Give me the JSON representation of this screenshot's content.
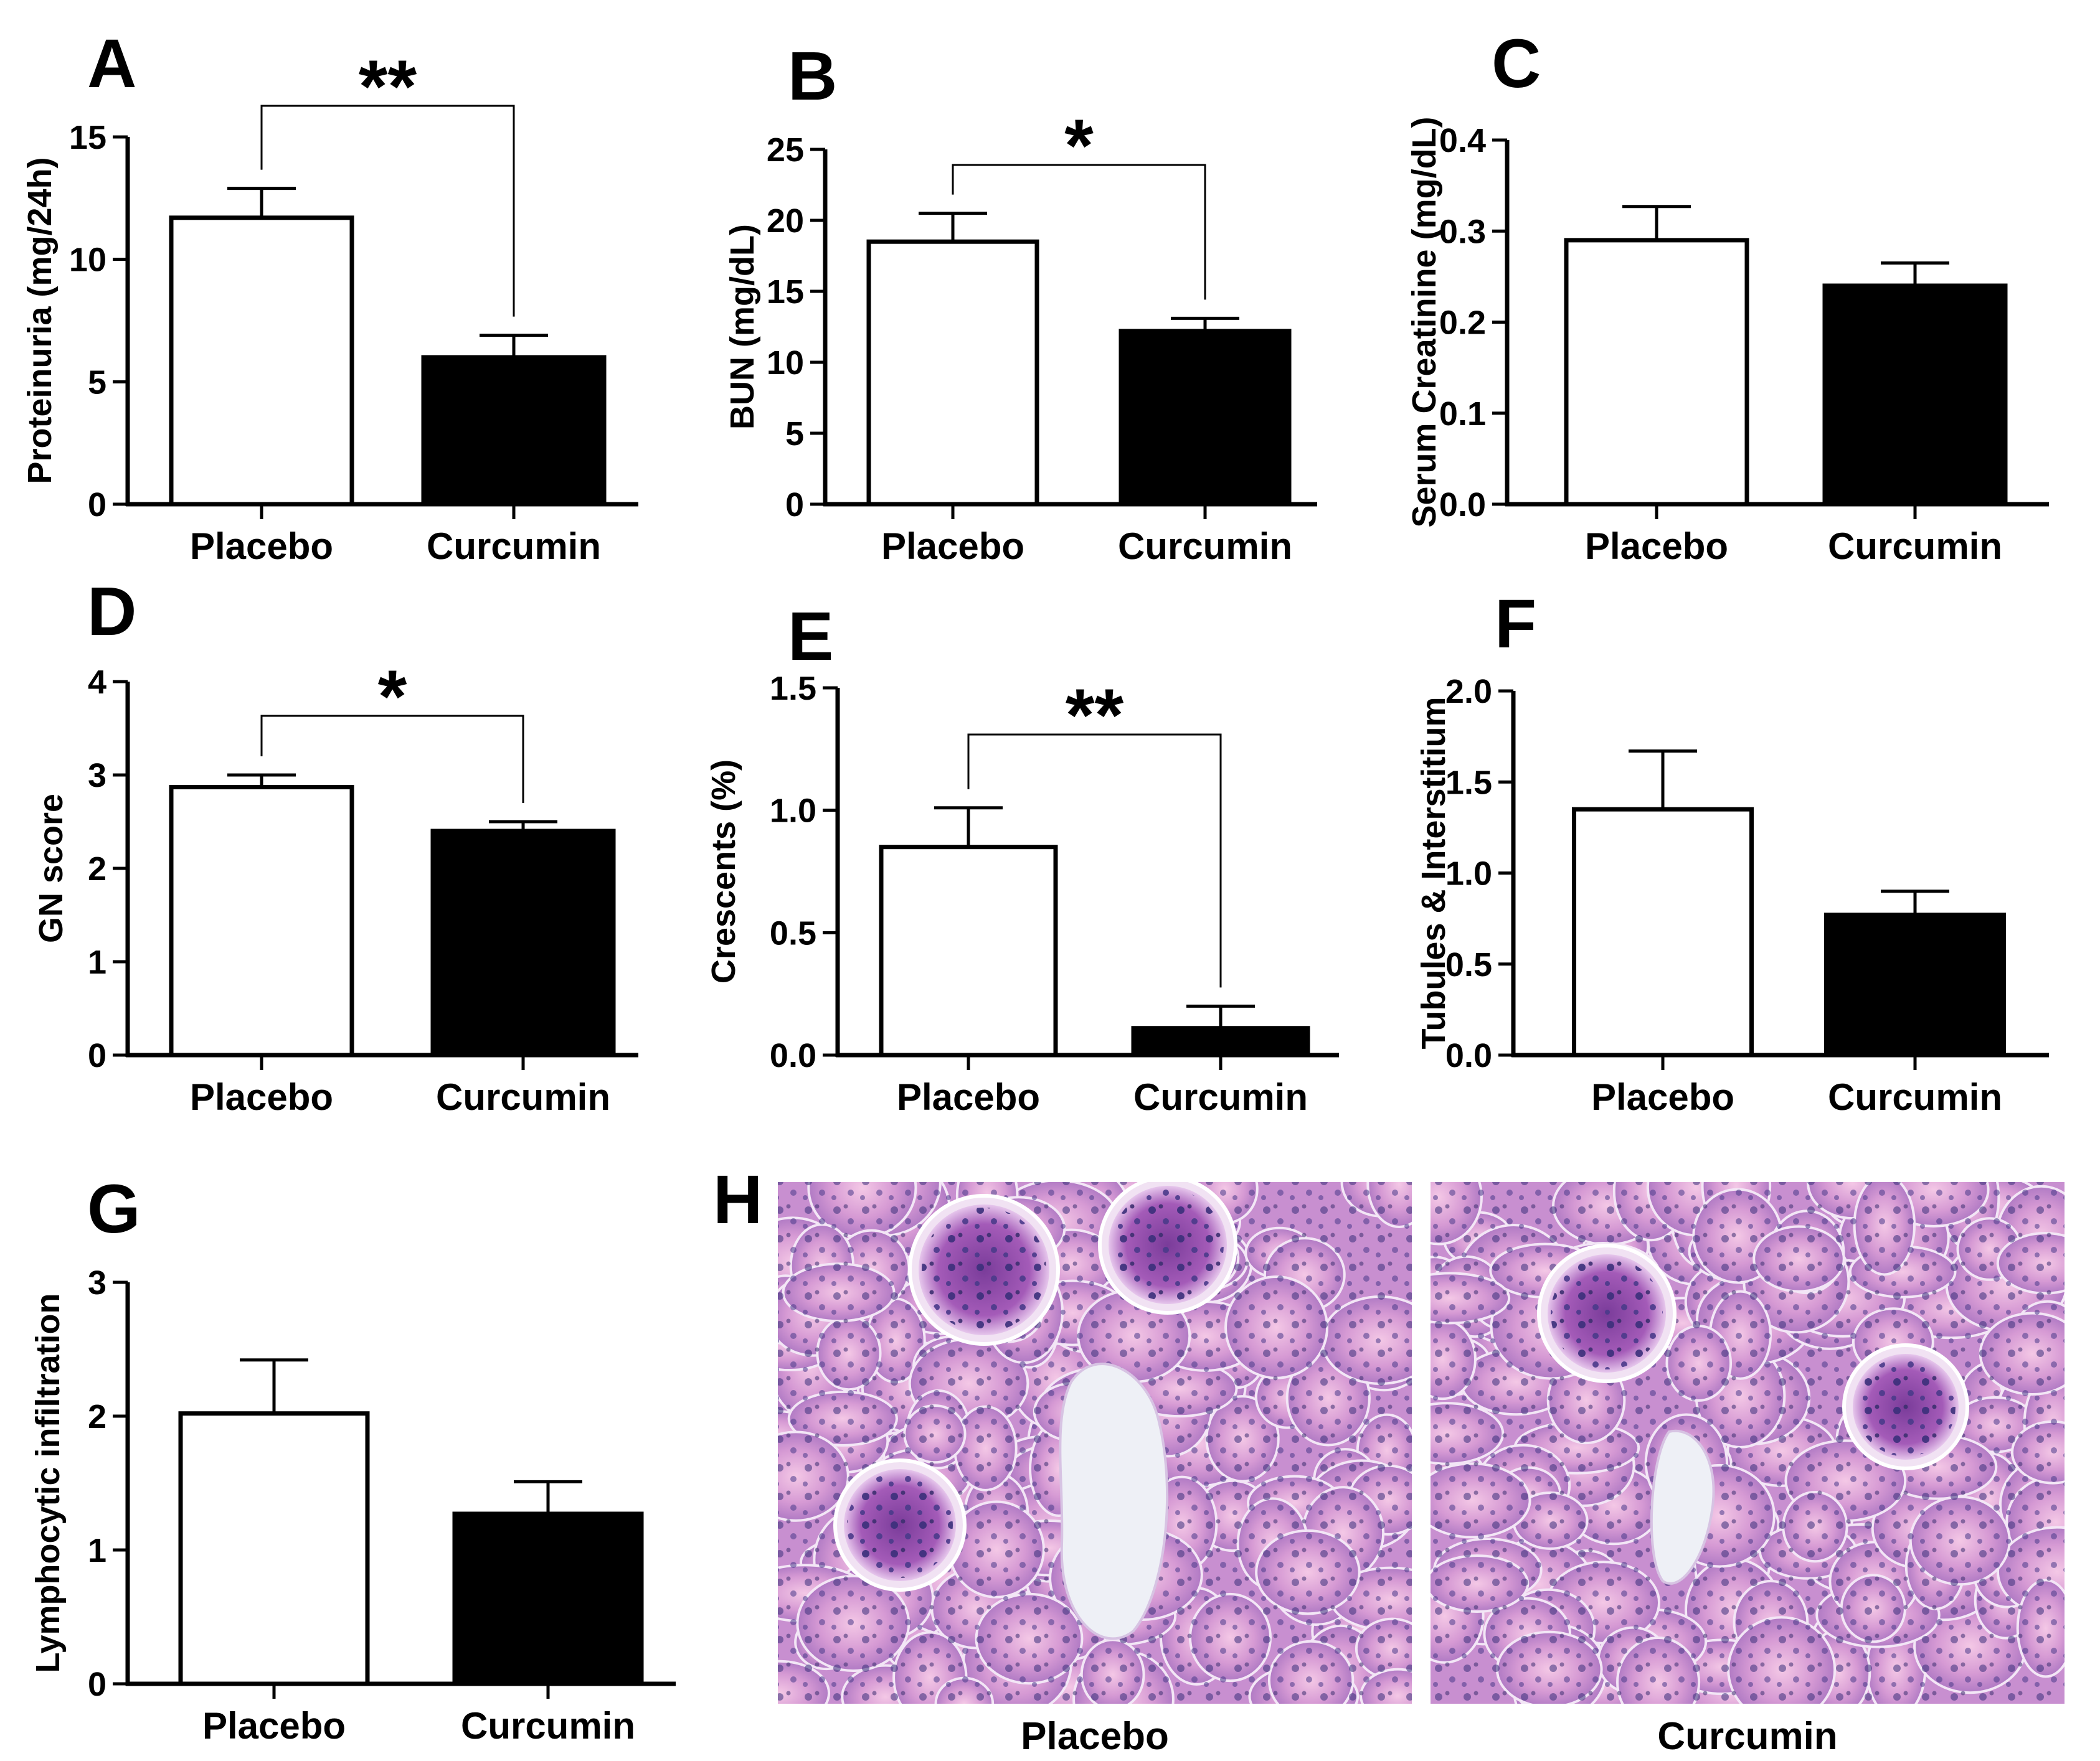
{
  "chart_data": [
    {
      "panel": "A",
      "type": "bar",
      "categories": [
        "Placebo",
        "Curcumin"
      ],
      "values": [
        11.7,
        6.0
      ],
      "errors": [
        1.2,
        0.9
      ],
      "fills": [
        "#ffffff",
        "#000000"
      ],
      "ylabel": "Proteinuria (mg/24h)",
      "ylim": [
        0,
        15
      ],
      "yticks": [
        0,
        5,
        10,
        15
      ],
      "decimals": 0,
      "significance": "**"
    },
    {
      "panel": "B",
      "type": "bar",
      "categories": [
        "Placebo",
        "Curcumin"
      ],
      "values": [
        18.5,
        12.2
      ],
      "errors": [
        2.0,
        0.9
      ],
      "fills": [
        "#ffffff",
        "#000000"
      ],
      "ylabel": "BUN (mg/dL)",
      "ylim": [
        0,
        25
      ],
      "yticks": [
        0,
        5,
        10,
        15,
        20,
        25
      ],
      "decimals": 0,
      "significance": "*"
    },
    {
      "panel": "C",
      "type": "bar",
      "categories": [
        "Placebo",
        "Curcumin"
      ],
      "values": [
        0.29,
        0.24
      ],
      "errors": [
        0.037,
        0.025
      ],
      "fills": [
        "#ffffff",
        "#000000"
      ],
      "ylabel": "Serum Creatinine (mg/dL)",
      "ylim": [
        0,
        0.4
      ],
      "yticks": [
        0,
        0.1,
        0.2,
        0.3,
        0.4
      ],
      "decimals": 1,
      "significance": ""
    },
    {
      "panel": "D",
      "type": "bar",
      "categories": [
        "Placebo",
        "Curcumin"
      ],
      "values": [
        2.87,
        2.4
      ],
      "errors": [
        0.13,
        0.1
      ],
      "fills": [
        "#ffffff",
        "#000000"
      ],
      "ylabel": "GN score",
      "ylim": [
        0,
        4
      ],
      "yticks": [
        0,
        1,
        2,
        3,
        4
      ],
      "decimals": 0,
      "significance": "*"
    },
    {
      "panel": "E",
      "type": "bar",
      "categories": [
        "Placebo",
        "Curcumin"
      ],
      "values": [
        0.85,
        0.11
      ],
      "errors": [
        0.16,
        0.09
      ],
      "fills": [
        "#ffffff",
        "#000000"
      ],
      "ylabel": "Crescents (%)",
      "ylim": [
        0,
        1.5
      ],
      "yticks": [
        0,
        0.5,
        1.0,
        1.5
      ],
      "decimals": 1,
      "significance": "**"
    },
    {
      "panel": "F",
      "type": "bar",
      "categories": [
        "Placebo",
        "Curcumin"
      ],
      "values": [
        1.35,
        0.77
      ],
      "errors": [
        0.32,
        0.13
      ],
      "fills": [
        "#ffffff",
        "#000000"
      ],
      "ylabel": "Tubules & Interstitium",
      "ylim": [
        0,
        2.0
      ],
      "yticks": [
        0,
        0.5,
        1.0,
        1.5,
        2.0
      ],
      "decimals": 1,
      "significance": ""
    },
    {
      "panel": "G",
      "type": "bar",
      "categories": [
        "Placebo",
        "Curcumin"
      ],
      "values": [
        2.02,
        1.27
      ],
      "errors": [
        0.4,
        0.24
      ],
      "fills": [
        "#ffffff",
        "#000000"
      ],
      "ylabel": "Lymphocytic infiltration",
      "ylim": [
        0,
        3
      ],
      "yticks": [
        0,
        1,
        2,
        3
      ],
      "decimals": 0,
      "significance": ""
    }
  ],
  "histology": {
    "panel": "H",
    "images": [
      {
        "caption": "Placebo"
      },
      {
        "caption": "Curcumin"
      }
    ]
  }
}
